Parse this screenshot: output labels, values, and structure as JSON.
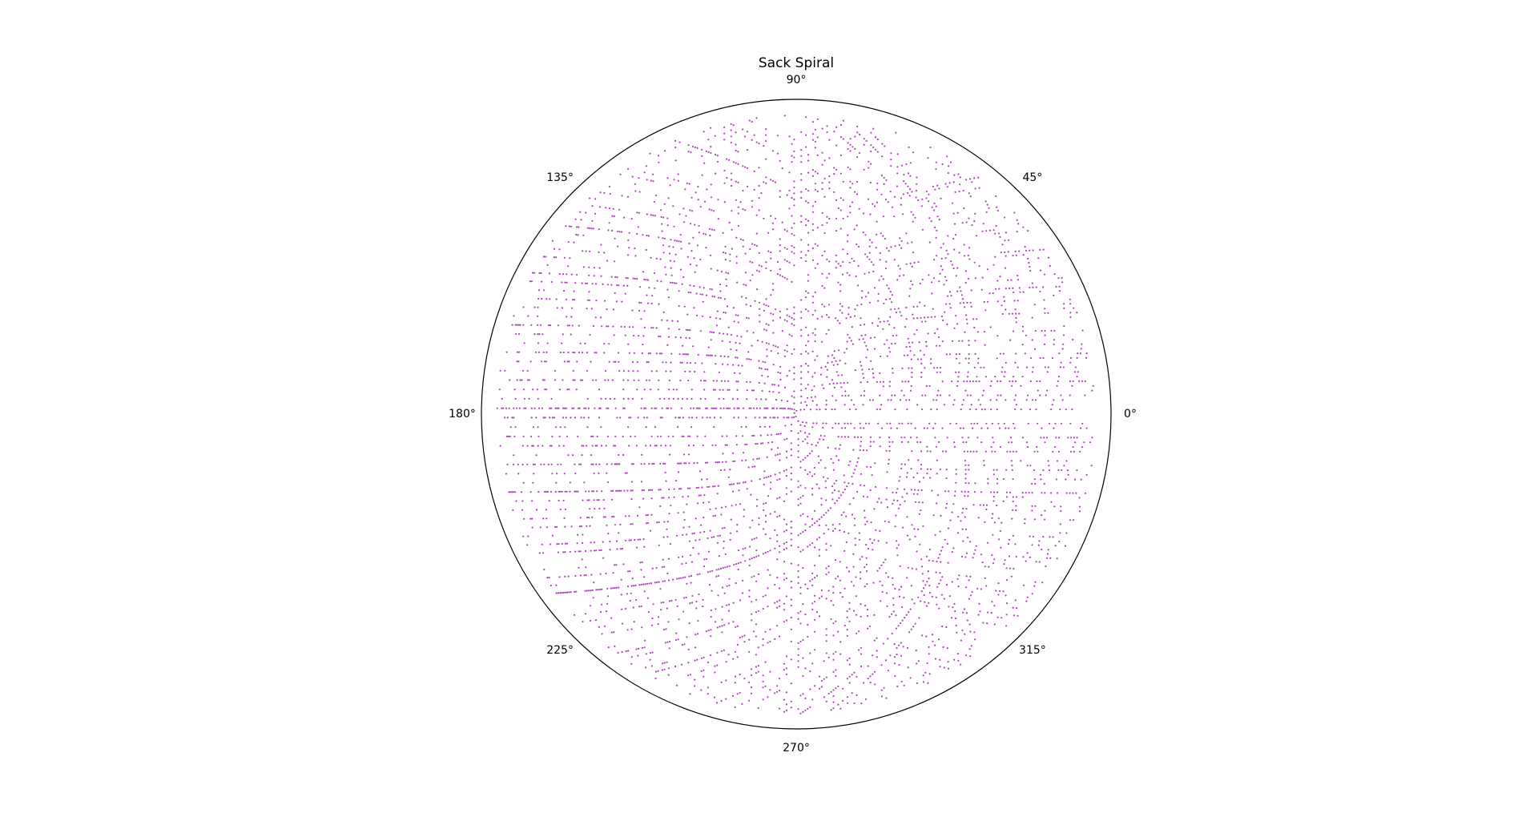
{
  "chart_data": {
    "type": "scatter",
    "projection": "polar",
    "title": "Sack Spiral",
    "marker_color": "#b040c0",
    "grid": false,
    "radial_ticks_visible": false,
    "theta_ticks": [
      {
        "deg": 0,
        "label": "0°"
      },
      {
        "deg": 45,
        "label": "45°"
      },
      {
        "deg": 90,
        "label": "90°"
      },
      {
        "deg": 135,
        "label": "135°"
      },
      {
        "deg": 180,
        "label": "180°"
      },
      {
        "deg": 225,
        "label": "225°"
      },
      {
        "deg": 270,
        "label": "270°"
      },
      {
        "deg": 315,
        "label": "315°"
      }
    ],
    "series": [
      {
        "rule": "prime numbers n plotted at r = sqrt(n), theta = 2*pi*sqrt(n)",
        "n_max": 40000
      }
    ]
  }
}
